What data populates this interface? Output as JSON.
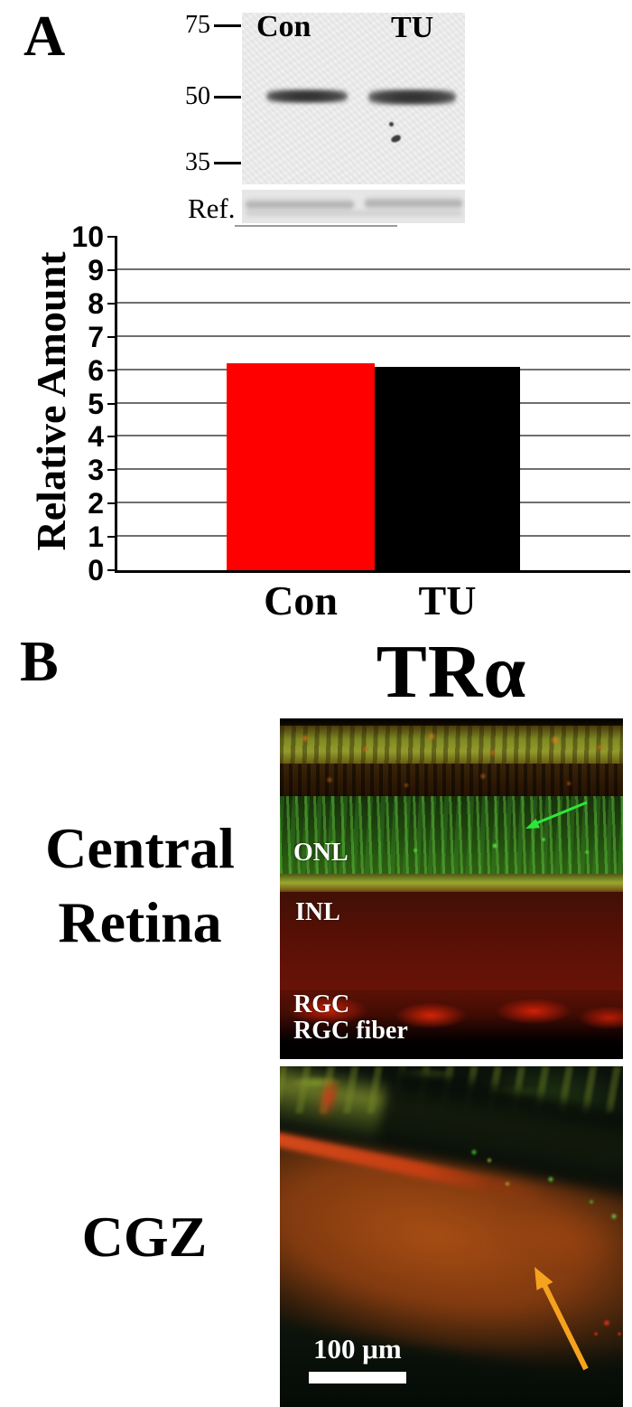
{
  "panel_a": {
    "label": "A",
    "blot": {
      "lanes": [
        "Con",
        "TU"
      ],
      "markers": [
        "75",
        "50",
        "35"
      ],
      "ref_label": "Ref."
    },
    "chart_data": {
      "type": "bar",
      "categories": [
        "Con",
        "TU"
      ],
      "values": [
        6.2,
        6.1
      ],
      "bar_colors": [
        "#ff0000",
        "#000000"
      ],
      "title": "",
      "xlabel": "",
      "ylabel": "Relative Amount",
      "ylim": [
        0,
        10
      ],
      "ytick_step": 1,
      "grid": true,
      "legend": false
    }
  },
  "panel_b": {
    "label": "B",
    "title": "TRα",
    "central_retina": {
      "side_label": "Central Retina",
      "annotations": [
        "ONL",
        "INL",
        "RGC",
        "RGC fiber"
      ],
      "arrow": {
        "name": "green-arrow",
        "color": "#2de63a"
      }
    },
    "cgz": {
      "side_label": "CGZ",
      "scale_bar_label": "100 μm",
      "arrow": {
        "name": "orange-arrow",
        "color": "#f5a21f"
      }
    }
  }
}
